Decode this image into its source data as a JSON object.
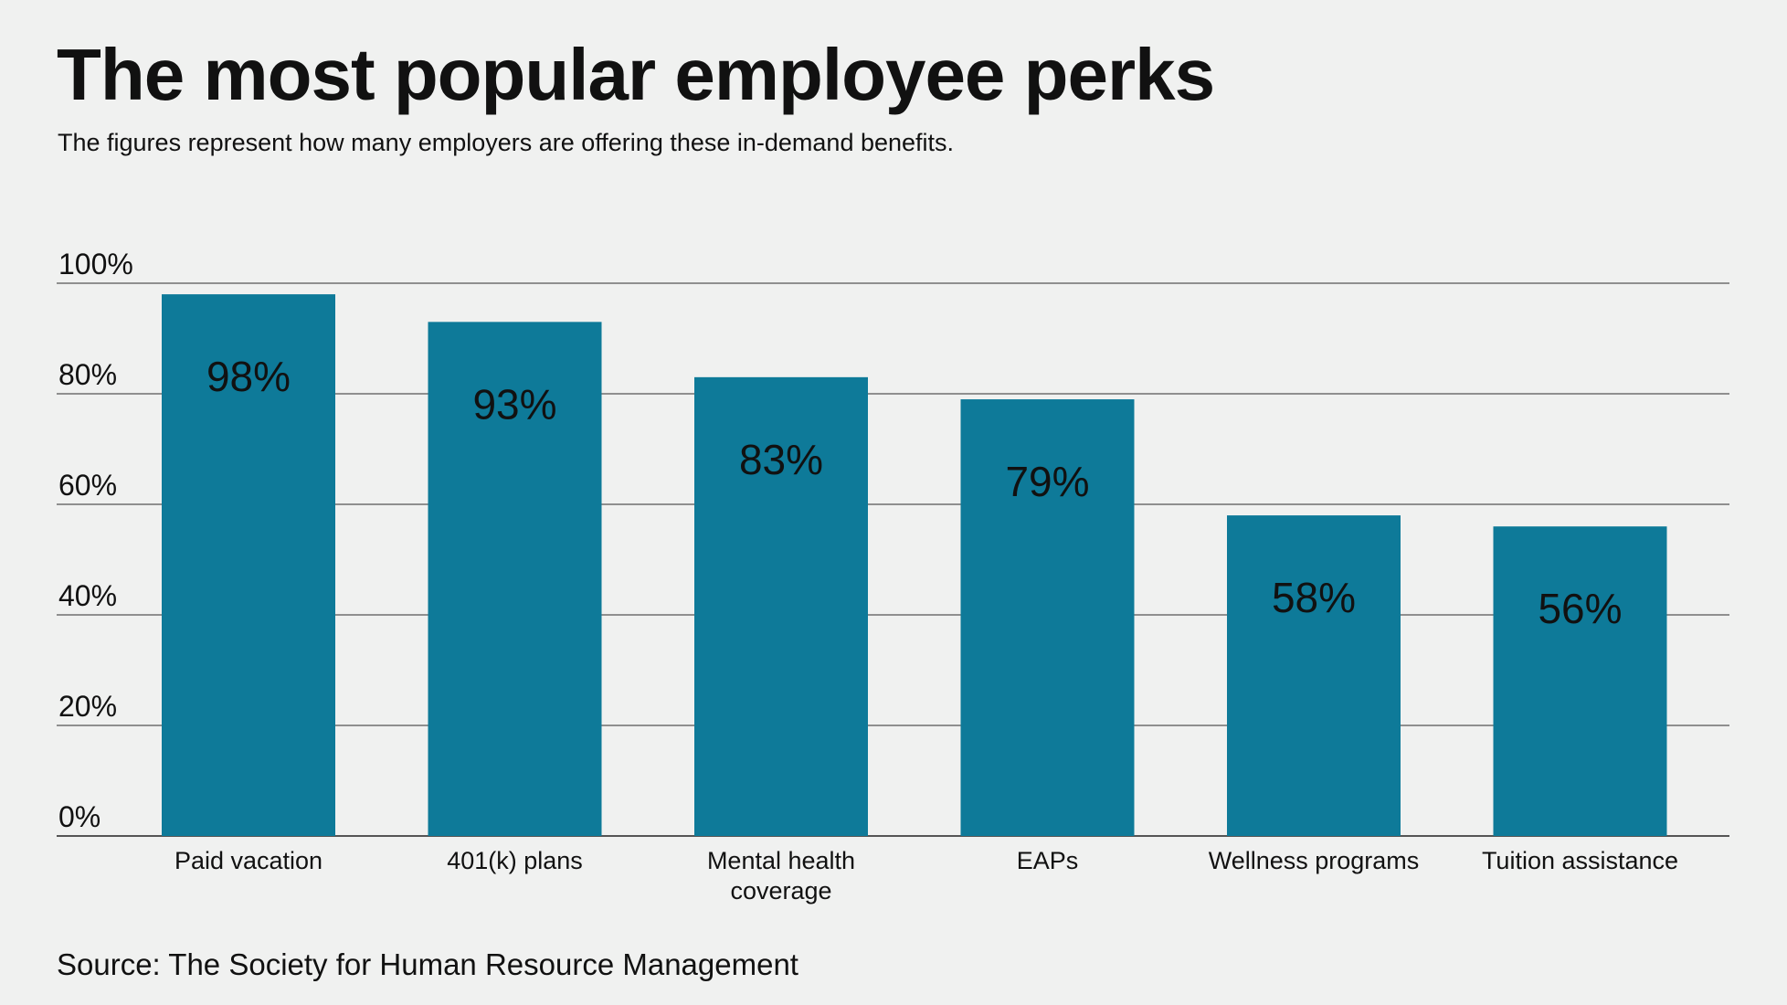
{
  "title": "The most popular employee perks",
  "subtitle": "The figures represent how many employers are offering these in-demand benefits.",
  "source": "Source: The Society for Human Resource Management",
  "colors": {
    "background": "#f0f1f0",
    "bar": "#0e7a99",
    "text": "#111111",
    "grid": "#555555"
  },
  "chart_data": {
    "type": "bar",
    "categories": [
      "Paid vacation",
      "401(k) plans",
      "Mental health coverage",
      "EAPs",
      "Wellness programs",
      "Tuition assistance"
    ],
    "category_lines": [
      [
        "Paid vacation"
      ],
      [
        "401(k) plans"
      ],
      [
        "Mental health",
        "coverage"
      ],
      [
        "EAPs"
      ],
      [
        "Wellness programs"
      ],
      [
        "Tuition assistance"
      ]
    ],
    "values": [
      98,
      93,
      83,
      79,
      58,
      56
    ],
    "data_labels": [
      "98%",
      "93%",
      "83%",
      "79%",
      "58%",
      "56%"
    ],
    "yticks": [
      0,
      20,
      40,
      60,
      80,
      100
    ],
    "ytick_labels": [
      "0%",
      "20%",
      "40%",
      "60%",
      "80%",
      "100%"
    ],
    "ylim": [
      0,
      100
    ],
    "grid": true
  }
}
